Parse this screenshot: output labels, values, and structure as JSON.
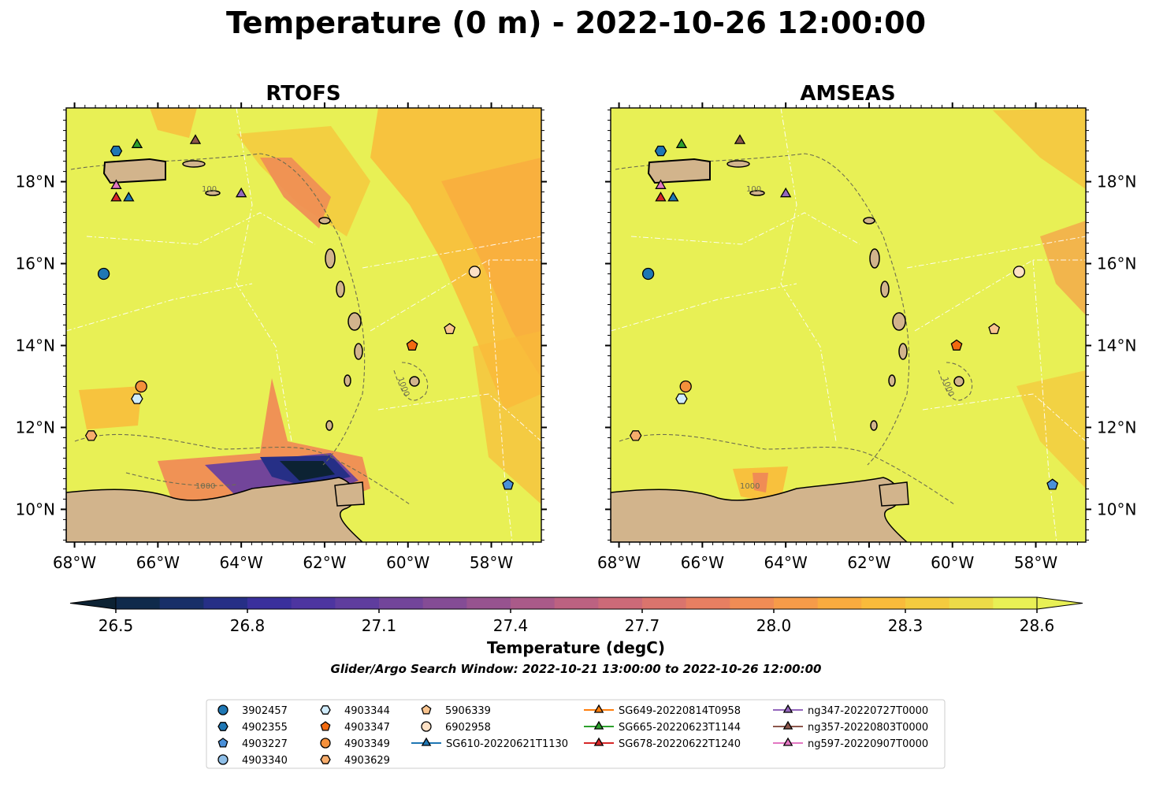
{
  "figure": {
    "title": "Temperature (0 m) - 2022-10-26 12:00:00",
    "search_window": "Glider/Argo Search Window: 2022-10-21 13:00:00 to 2022-10-26 12:00:00"
  },
  "chart_data": {
    "type": "heatmap",
    "panels": [
      {
        "title": "RTOFS",
        "lat_tick_side": "left"
      },
      {
        "title": "AMSEAS",
        "lat_tick_side": "right"
      }
    ],
    "xlim": [
      -68.2,
      -56.8
    ],
    "ylim": [
      9.2,
      19.8
    ],
    "x_ticks": [
      {
        "value": -68,
        "label": "68°W"
      },
      {
        "value": -66,
        "label": "66°W"
      },
      {
        "value": -64,
        "label": "64°W"
      },
      {
        "value": -62,
        "label": "62°W"
      },
      {
        "value": -60,
        "label": "60°W"
      },
      {
        "value": -58,
        "label": "58°W"
      }
    ],
    "y_ticks": [
      {
        "value": 10,
        "label": "10°N"
      },
      {
        "value": 12,
        "label": "12°N"
      },
      {
        "value": 14,
        "label": "14°N"
      },
      {
        "value": 16,
        "label": "16°N"
      },
      {
        "value": 18,
        "label": "18°N"
      }
    ],
    "contour_labels": [
      "1000",
      "100"
    ],
    "colorbar": {
      "label": "Temperature (degC)",
      "vmin": 26.5,
      "vmax": 28.6,
      "step": 0.1,
      "ticks": [
        26.5,
        26.8,
        27.1,
        27.4,
        27.7,
        28.0,
        28.3,
        28.6
      ],
      "tick_labels": [
        "26.5",
        "26.8",
        "27.1",
        "27.4",
        "27.7",
        "28.0",
        "28.3",
        "28.6"
      ],
      "extend": "both",
      "colors": [
        "#0c2233",
        "#0f2a4b",
        "#182f68",
        "#262f86",
        "#3a309c",
        "#4d35a0",
        "#5f3d9e",
        "#72459a",
        "#844c95",
        "#97538f",
        "#aa5a89",
        "#bc6281",
        "#cc6a78",
        "#da746d",
        "#e77f62",
        "#f08c55",
        "#f69b49",
        "#f9ab3f",
        "#f9bb3b",
        "#f4cb3f",
        "#ecdb48",
        "#e8f055"
      ]
    },
    "markers": [
      {
        "label": "3902457",
        "kind": "argo",
        "shape": "circle",
        "color": "#1f77b4",
        "lon": -67.3,
        "lat": 15.75
      },
      {
        "label": "4902355",
        "kind": "argo",
        "shape": "hexagon",
        "color": "#1f77b4",
        "lon": -67.0,
        "lat": 18.75
      },
      {
        "label": "4903227",
        "kind": "argo",
        "shape": "pentagon",
        "color": "#4a90d9",
        "lon": -57.6,
        "lat": 10.6
      },
      {
        "label": "4903340",
        "kind": "argo",
        "shape": "circle",
        "color": "#8fbfe8",
        "lon": null,
        "lat": null
      },
      {
        "label": "4903344",
        "kind": "argo",
        "shape": "hexagon",
        "color": "#d0ecfb",
        "lon": -66.5,
        "lat": 12.7
      },
      {
        "label": "4903347",
        "kind": "argo",
        "shape": "pentagon",
        "color": "#f26a10",
        "lon": -59.9,
        "lat": 14.0
      },
      {
        "label": "4903349",
        "kind": "argo",
        "shape": "circle",
        "color": "#f4903b",
        "lon": -66.4,
        "lat": 13.0
      },
      {
        "label": "4903629",
        "kind": "argo",
        "shape": "hexagon",
        "color": "#f7ad6c",
        "lon": -67.6,
        "lat": 11.8
      },
      {
        "label": "5906339",
        "kind": "argo",
        "shape": "pentagon",
        "color": "#f9c48f",
        "lon": -59.0,
        "lat": 14.4
      },
      {
        "label": "6902958",
        "kind": "argo",
        "shape": "circle",
        "color": "#fde0c4",
        "lon": -58.4,
        "lat": 15.8
      },
      {
        "label": "SG610-20220621T1130",
        "kind": "glider",
        "shape": "triangle",
        "color": "#1f77b4",
        "lon": -66.7,
        "lat": 17.6
      },
      {
        "label": "SG649-20220814T0958",
        "kind": "glider",
        "shape": "triangle",
        "color": "#ff7f0e",
        "lon": null,
        "lat": null
      },
      {
        "label": "SG665-20220623T1144",
        "kind": "glider",
        "shape": "triangle",
        "color": "#2ca02c",
        "lon": -66.5,
        "lat": 18.9
      },
      {
        "label": "SG678-20220622T1240",
        "kind": "glider",
        "shape": "triangle",
        "color": "#d62728",
        "lon": -67.0,
        "lat": 17.6
      },
      {
        "label": "ng347-20220727T0000",
        "kind": "glider",
        "shape": "triangle",
        "color": "#9467bd",
        "lon": -64.0,
        "lat": 17.7
      },
      {
        "label": "ng357-20220803T0000",
        "kind": "glider",
        "shape": "triangle",
        "color": "#8c564b",
        "lon": -65.1,
        "lat": 19.0
      },
      {
        "label": "ng597-20220907T0000",
        "kind": "glider",
        "shape": "triangle",
        "color": "#e377c2",
        "lon": -67.0,
        "lat": 17.9
      }
    ]
  }
}
